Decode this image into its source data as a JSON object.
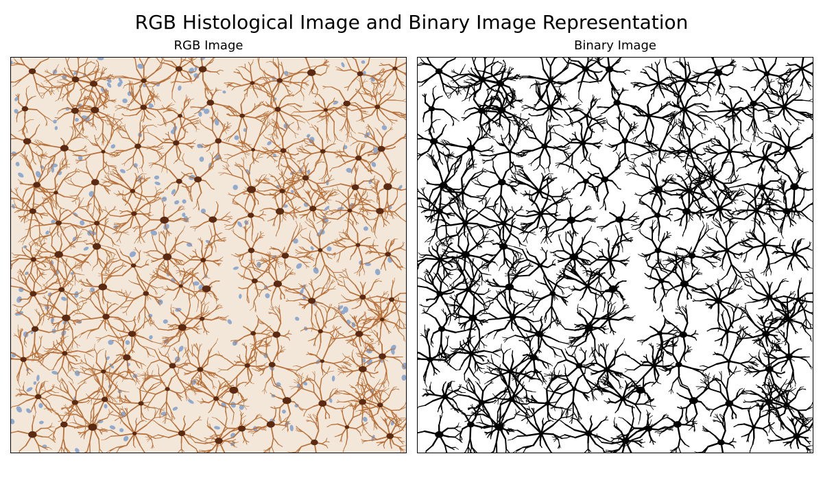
{
  "figure": {
    "title": "RGB Histological Image and Binary Image Representation"
  },
  "panels": [
    {
      "title": "RGB Image",
      "content": "rgb-histology",
      "colors": {
        "background": "#f2e7d9",
        "process": "#b8713a",
        "cell_body": "#5a2a12",
        "nucleus": "#6f95c9"
      }
    },
    {
      "title": "Binary Image",
      "content": "binary-mask",
      "colors": {
        "background": "#ffffff",
        "foreground": "#000000"
      }
    }
  ]
}
